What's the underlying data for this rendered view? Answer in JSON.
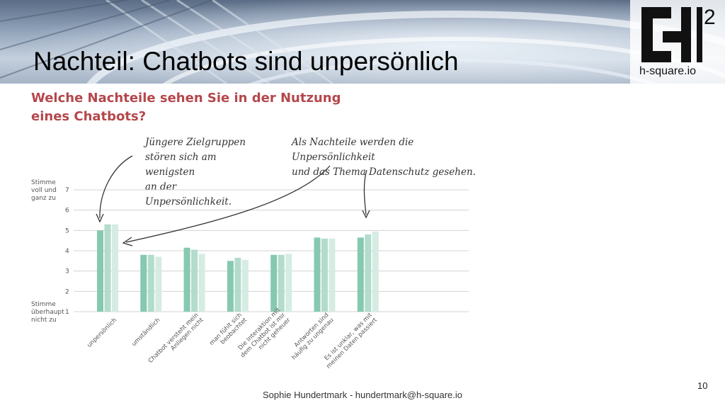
{
  "slide": {
    "title": "Nachteil: Chatbots sind unpersönlich",
    "footer": "Sophie Hundertmark - hundertmark@h-square.io",
    "page_number": "10"
  },
  "logo": {
    "superscript": "2",
    "text": "h-square.io"
  },
  "question": {
    "line1": "Welche Nachteile sehen Sie in der Nutzung",
    "line2": "eines Chatbots?"
  },
  "annotations": {
    "note1": [
      "Jüngere Zielgruppen",
      "stören sich am wenigsten",
      "an der Unpersönlichkeit."
    ],
    "note2": [
      "Als Nachteile werden die Unpersönlichkeit",
      "und das Thema Datenschutz gesehen."
    ]
  },
  "colors": {
    "series": [
      "#86c9b0",
      "#b2dccb",
      "#d5ece3"
    ],
    "question": "#b5474b",
    "grid": "#d3d3d3"
  },
  "chart_data": {
    "type": "bar",
    "title": "Welche Nachteile sehen Sie in der Nutzung eines Chatbots?",
    "ylabel_top": [
      "Stimme",
      "voll und",
      "ganz zu"
    ],
    "ylabel_bottom": [
      "Stimme",
      "überhaupt",
      "nicht zu"
    ],
    "ylim": [
      1,
      7
    ],
    "yticks": [
      1,
      2,
      3,
      4,
      5,
      6,
      7
    ],
    "grid": true,
    "categories": [
      [
        "unpersönlich"
      ],
      [
        "umständlich"
      ],
      [
        "Chatbot versteht mein",
        "Anliegen nicht"
      ],
      [
        "man fühlt sich",
        "beobachtet"
      ],
      [
        "Die Interaktion mit",
        "dem Chatbot ist mir",
        "nicht geheuer"
      ],
      [
        "Antworten sind",
        "häufig zu ungenau"
      ],
      [
        "Es ist unklar, was mit",
        "meinen Daten passiert"
      ]
    ],
    "series": [
      {
        "values": [
          5.0,
          3.8,
          4.15,
          3.5,
          3.8,
          4.65,
          4.65
        ]
      },
      {
        "values": [
          5.3,
          3.8,
          4.05,
          3.65,
          3.8,
          4.6,
          4.8
        ]
      },
      {
        "values": [
          5.3,
          3.7,
          3.85,
          3.55,
          3.85,
          4.6,
          4.95
        ]
      }
    ]
  }
}
